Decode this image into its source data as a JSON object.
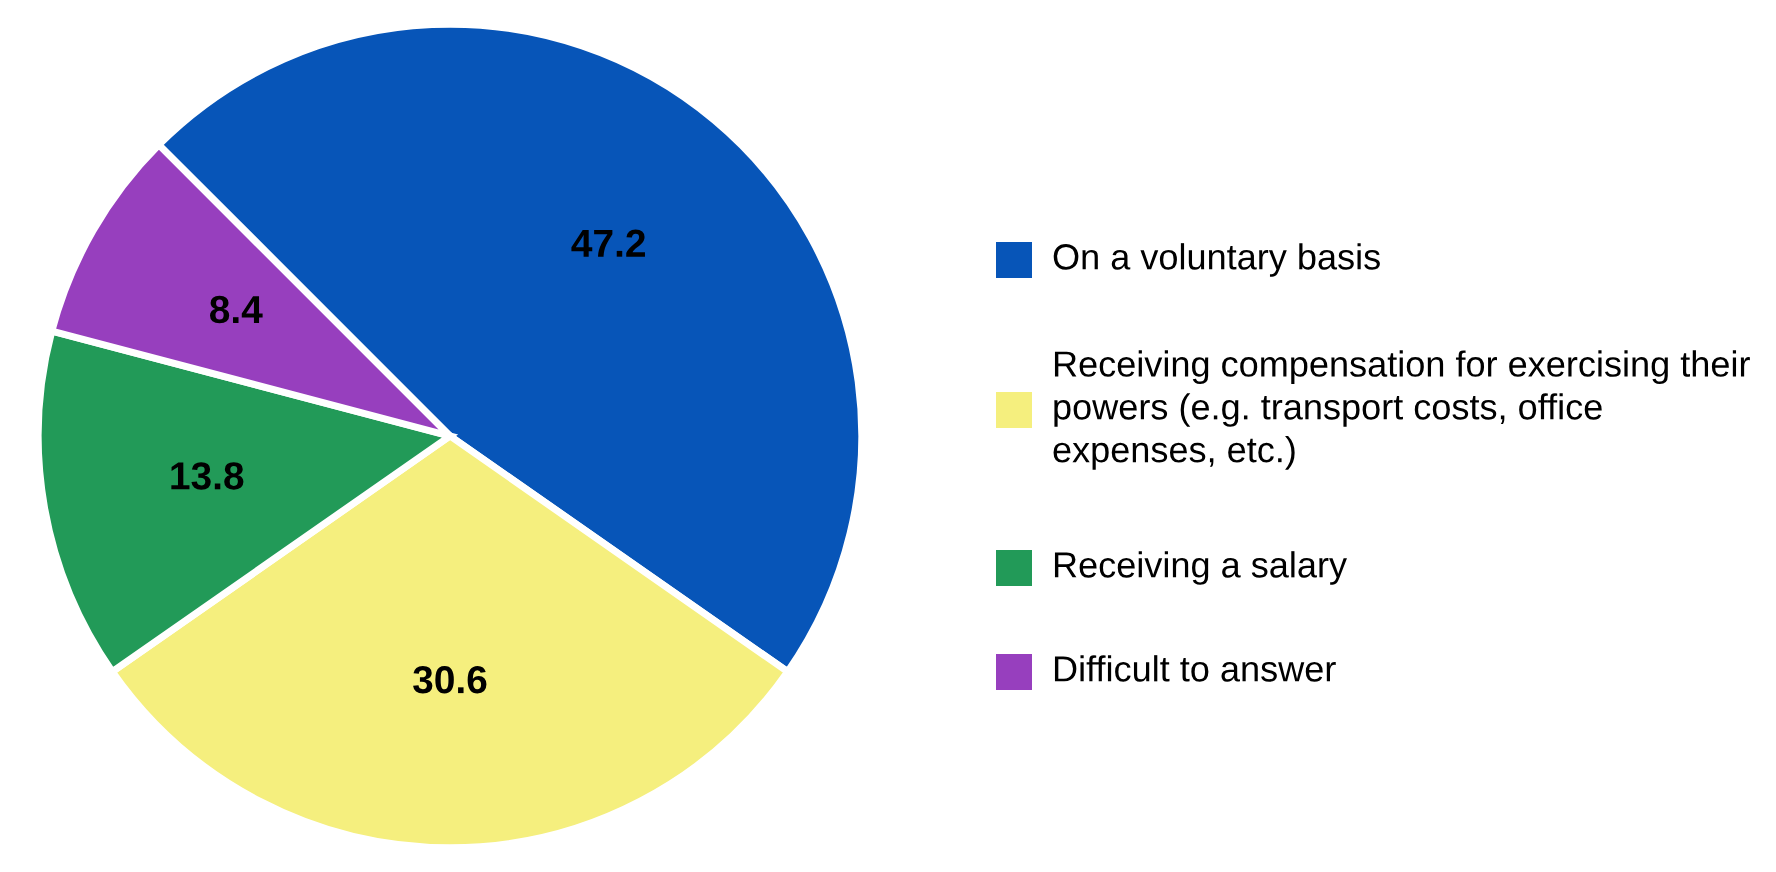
{
  "chart_data": {
    "type": "pie",
    "categories": [
      "On a voluntary basis",
      "Receiving compensation for exercising their powers (e.g. transport costs, office expenses, etc.)",
      "Receiving a salary",
      "Difficult to answer"
    ],
    "values": [
      47.2,
      30.6,
      13.8,
      8.4
    ],
    "colors": [
      "#0755b8",
      "#f5ef7e",
      "#229a58",
      "#973fbe"
    ],
    "data_labels": true,
    "legend": "right"
  }
}
